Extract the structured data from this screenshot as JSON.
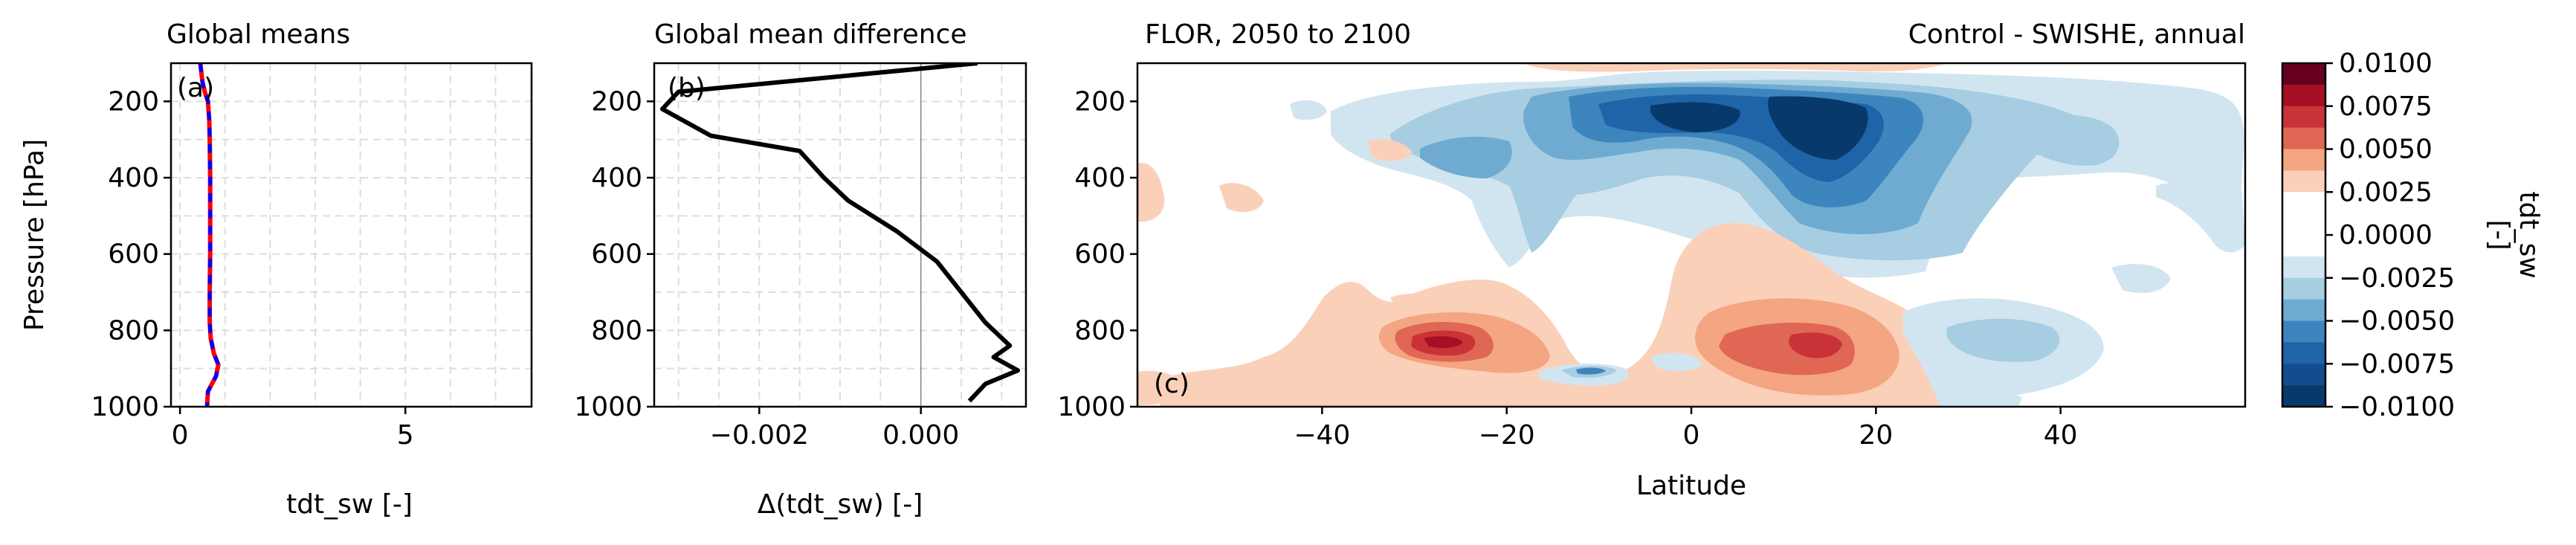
{
  "chart_data": [
    {
      "type": "line",
      "panel_label": "(a)",
      "title": "Global means",
      "xlabel": "tdt_sw [-]",
      "ylabel": "Pressure [hPa]",
      "xlim": [
        -0.2,
        7.8
      ],
      "ylim": [
        1000,
        100
      ],
      "xticks": [
        0,
        5
      ],
      "yticks": [
        200,
        400,
        600,
        800,
        1000
      ],
      "grid": true,
      "series": [
        {
          "name": "Control",
          "color": "#ff0000",
          "style": "solid",
          "x": [
            0.45,
            0.5,
            0.55,
            0.62,
            0.65,
            0.66,
            0.67,
            0.67,
            0.67,
            0.66,
            0.66,
            0.68,
            0.75,
            0.85,
            0.8,
            0.62,
            0.6
          ],
          "y": [
            100,
            150,
            175,
            200,
            250,
            300,
            400,
            500,
            600,
            700,
            780,
            820,
            860,
            890,
            920,
            960,
            1000
          ]
        },
        {
          "name": "SWISHE",
          "color": "#0000ff",
          "style": "dashed",
          "x": [
            0.45,
            0.5,
            0.55,
            0.62,
            0.65,
            0.66,
            0.67,
            0.67,
            0.67,
            0.66,
            0.66,
            0.68,
            0.75,
            0.85,
            0.8,
            0.62,
            0.6
          ],
          "y": [
            100,
            150,
            175,
            200,
            250,
            300,
            400,
            500,
            600,
            700,
            780,
            820,
            860,
            890,
            920,
            960,
            1000
          ]
        }
      ]
    },
    {
      "type": "line",
      "panel_label": "(b)",
      "title": "Global mean difference",
      "xlabel": "Δ(tdt_sw) [-]",
      "ylabel": "",
      "xlim": [
        -0.0033,
        0.0013
      ],
      "ylim": [
        1000,
        100
      ],
      "xticks": [
        -0.002,
        0.0
      ],
      "xtick_labels": [
        "−0.002",
        "0.000"
      ],
      "yticks": [
        200,
        400,
        600,
        800,
        1000
      ],
      "grid": true,
      "series": [
        {
          "name": "Control - SWISHE",
          "color": "#000000",
          "style": "solid",
          "x": [
            0.0007,
            -0.003,
            -0.0032,
            -0.0026,
            -0.0015,
            -0.0012,
            -0.0009,
            -0.0003,
            0.0002,
            0.0005,
            0.0008,
            0.0011,
            0.0009,
            0.0012,
            0.0008,
            0.0006
          ],
          "y": [
            100,
            175,
            220,
            290,
            330,
            400,
            460,
            540,
            620,
            700,
            780,
            840,
            870,
            905,
            940,
            985
          ]
        }
      ]
    },
    {
      "type": "heatmap",
      "panel_label": "(c)",
      "title_left": "FLOR, 2050 to 2100",
      "title_right": "Control - SWISHE, annual",
      "xlabel": "Latitude",
      "ylabel": "",
      "xlim": [
        -60,
        60
      ],
      "ylim": [
        1000,
        100
      ],
      "xticks": [
        -40,
        -20,
        0,
        20,
        40
      ],
      "xtick_labels": [
        "−40",
        "−20",
        "0",
        "20",
        "40"
      ],
      "yticks": [
        200,
        400,
        600,
        800,
        1000
      ],
      "colorbar": {
        "label": "tdt_sw\n[-]",
        "vmin": -0.01,
        "vmax": 0.01,
        "ticks": [
          0.01,
          0.0075,
          0.005,
          0.0025,
          0.0,
          -0.0025,
          -0.005,
          -0.0075,
          -0.01
        ],
        "tick_labels": [
          "0.0100",
          "0.0075",
          "0.0050",
          "0.0025",
          "0.0000",
          "−0.0025",
          "−0.0050",
          "−0.0075",
          "−0.0100"
        ],
        "levels_colors": [
          "#67001f",
          "#a50f25",
          "#c93338",
          "#e06754",
          "#f4a582",
          "#fbd0b9",
          "#ffffff",
          "#d1e5f0",
          "#a6cde2",
          "#6fabd1",
          "#3d85bd",
          "#1f63a8",
          "#08396b"
        ]
      },
      "features": [
        {
          "lat": -19,
          "p": 820,
          "value": 0.0085
        },
        {
          "lat": 10,
          "p": 820,
          "value": 0.006
        },
        {
          "lat": 10,
          "p": 200,
          "value": -0.0095
        },
        {
          "lat": 2,
          "p": 170,
          "value": -0.0095
        },
        {
          "lat": -15,
          "p": 870,
          "value": -0.007
        }
      ]
    }
  ]
}
